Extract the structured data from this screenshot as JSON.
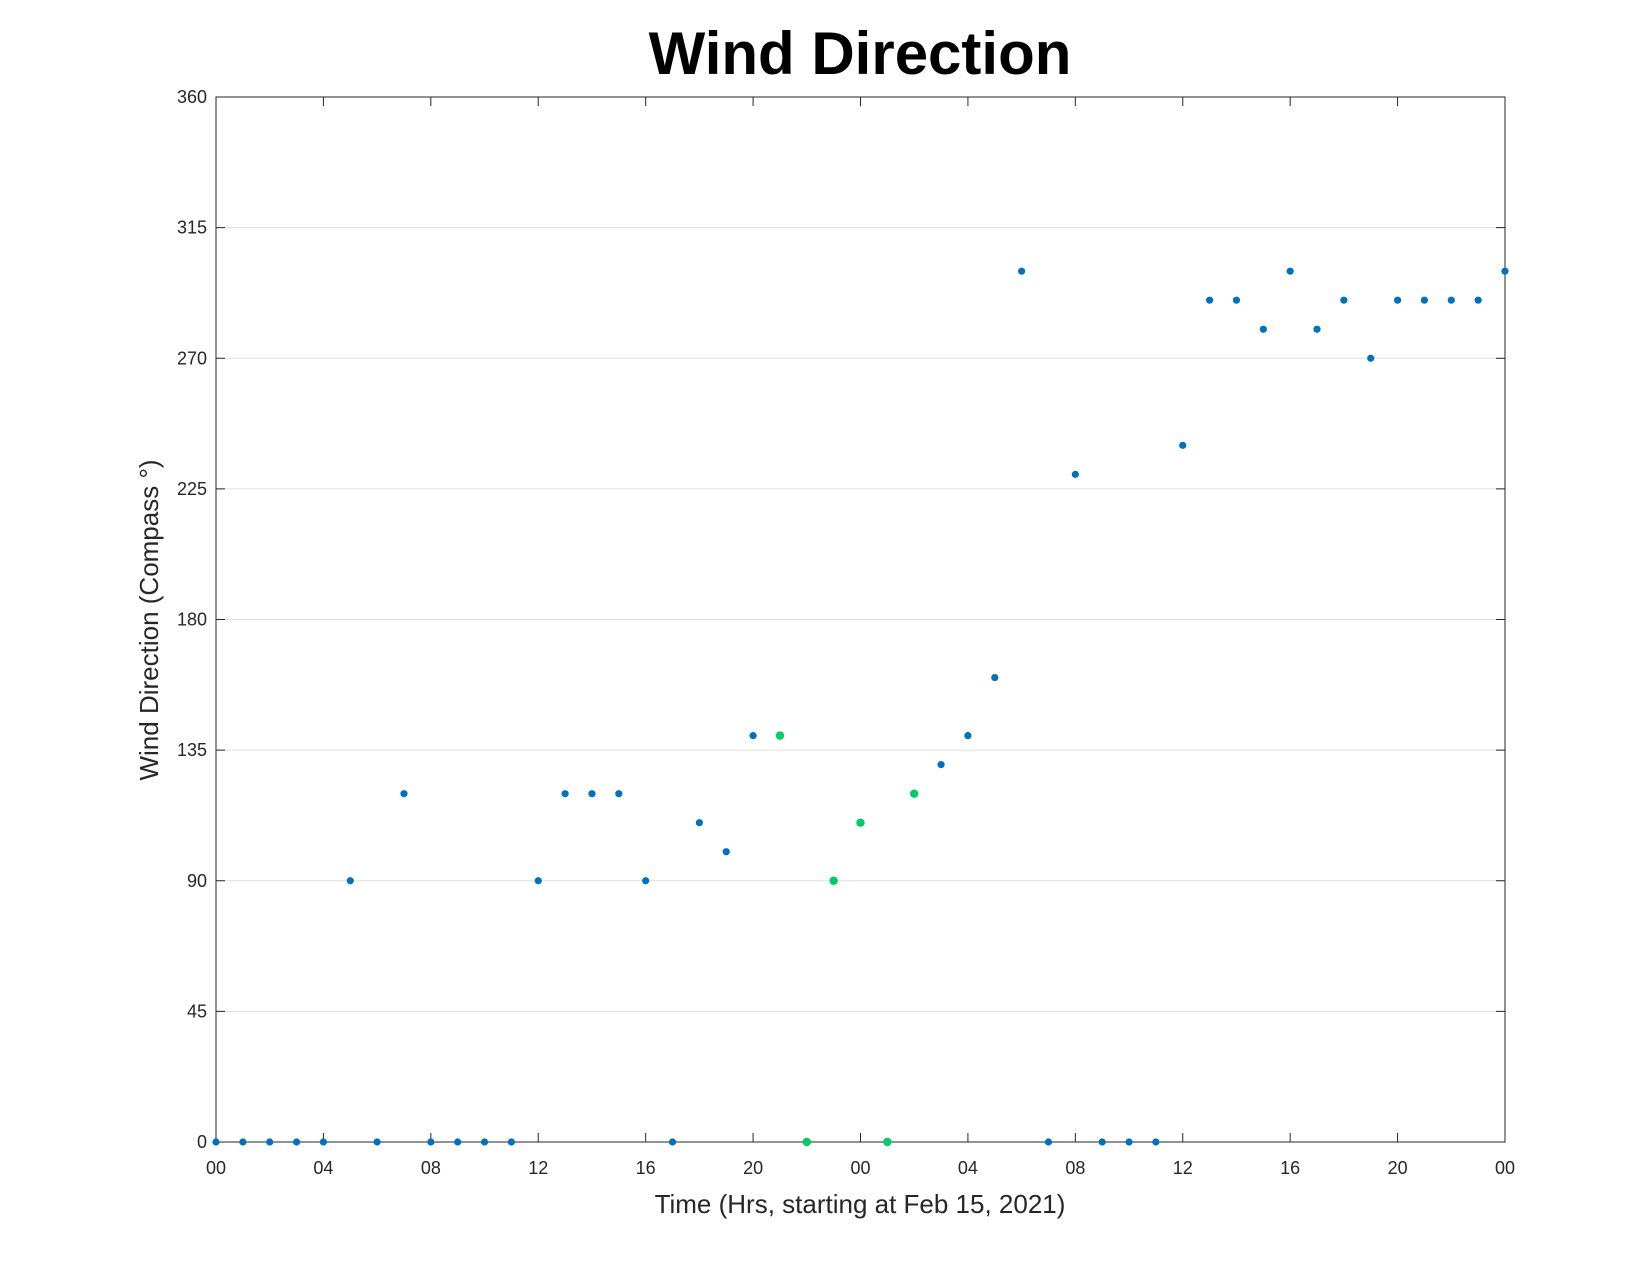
{
  "chart_data": {
    "type": "scatter",
    "title": "Wind Direction",
    "xlabel": "Time (Hrs, starting at Feb 15, 2021)",
    "ylabel": "Wind Direction (Compass °)",
    "x_unit": "hours",
    "xlim": [
      0,
      48
    ],
    "ylim": [
      0,
      360
    ],
    "x_ticks": [
      0,
      4,
      8,
      12,
      16,
      20,
      24,
      28,
      32,
      36,
      40,
      44,
      48
    ],
    "x_tick_labels": [
      "00",
      "04",
      "08",
      "12",
      "16",
      "20",
      "00",
      "04",
      "08",
      "12",
      "16",
      "20",
      "00"
    ],
    "y_ticks": [
      0,
      45,
      90,
      135,
      180,
      225,
      270,
      315,
      360
    ],
    "y_tick_labels": [
      "0",
      "45",
      "90",
      "135",
      "180",
      "225",
      "270",
      "315",
      "360"
    ],
    "grid": "horizontal",
    "colors": {
      "primary": "#0072bd",
      "highlight": "#00cc66",
      "axis": "#262626",
      "grid": "#dfdfdf"
    },
    "series": [
      {
        "color": "#0072bd",
        "x": [
          0,
          1,
          2,
          3,
          4,
          5,
          6,
          7,
          8,
          9,
          10,
          11,
          12,
          13,
          14,
          15,
          16,
          17,
          18,
          19,
          20,
          27,
          28,
          29,
          30,
          31,
          32,
          33,
          34,
          35,
          36,
          37,
          38,
          39,
          40,
          41,
          42,
          43,
          44,
          45,
          46,
          47,
          48
        ],
        "y": [
          0,
          0,
          0,
          0,
          0,
          90,
          0,
          120,
          0,
          0,
          0,
          0,
          90,
          120,
          120,
          120,
          90,
          0,
          110,
          100,
          140,
          130,
          140,
          160,
          300,
          0,
          230,
          0,
          0,
          0,
          240,
          290,
          290,
          280,
          300,
          280,
          290,
          270,
          290,
          290,
          290,
          290,
          300
        ]
      },
      {
        "color": "#00cc66",
        "x": [
          21,
          22,
          23,
          24,
          25,
          26
        ],
        "y": [
          140,
          0,
          90,
          110,
          0,
          120
        ]
      }
    ]
  }
}
